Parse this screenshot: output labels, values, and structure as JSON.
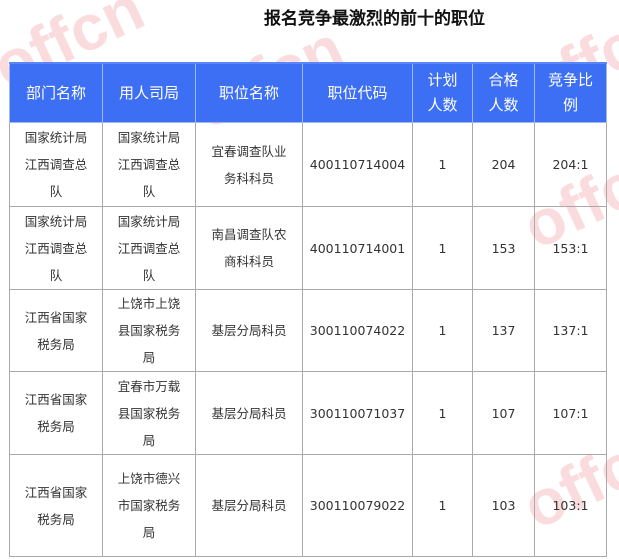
{
  "title": "报名竞争最激烈的前十的职位",
  "watermark": "offcn 中公",
  "headers": [
    "部门名称",
    "用人司局",
    "职位名称",
    "职位代码",
    "计划人数",
    "合格人数",
    "竞争比例"
  ],
  "rows": [
    {
      "dept": "国家统计局江西调查总队",
      "bureau": "国家统计局江西调查总队",
      "position": "宜春调查队业务科科员",
      "code": "400110714004",
      "plan": "1",
      "qualified": "204",
      "ratio": "204:1"
    },
    {
      "dept": "国家统计局江西调查总队",
      "bureau": "国家统计局江西调查总队",
      "position": "南昌调查队农商科科员",
      "code": "400110714001",
      "plan": "1",
      "qualified": "153",
      "ratio": "153:1"
    },
    {
      "dept": "江西省国家税务局",
      "bureau": "上饶市上饶县国家税务局",
      "position": "基层分局科员",
      "code": "300110074022",
      "plan": "1",
      "qualified": "137",
      "ratio": "137:1"
    },
    {
      "dept": "江西省国家税务局",
      "bureau": "宜春市万载县国家税务局",
      "position": "基层分局科员",
      "code": "300110071037",
      "plan": "1",
      "qualified": "107",
      "ratio": "107:1"
    },
    {
      "dept": "江西省国家税务局",
      "bureau": "上饶市德兴市国家税务局",
      "position": "基层分局科员",
      "code": "300110079022",
      "plan": "1",
      "qualified": "103",
      "ratio": "103:1"
    }
  ]
}
